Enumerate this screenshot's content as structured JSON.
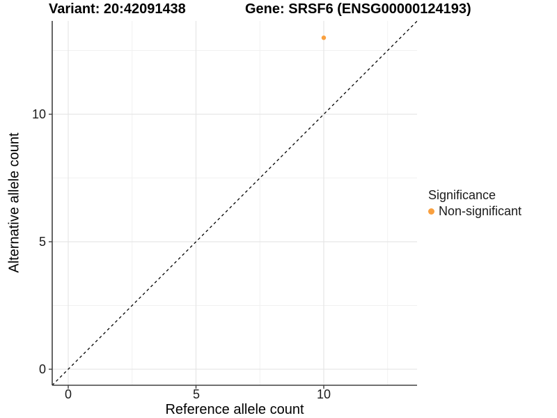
{
  "figure": {
    "title_left": "Variant: 20:42091438",
    "title_right": "Gene: SRSF6 (ENSG00000124193)"
  },
  "chart_data": {
    "type": "scatter",
    "title": "Variant: 20:42091438   Gene: SRSF6 (ENSG00000124193)",
    "xlabel": "Reference allele count",
    "ylabel": "Alternative allele count",
    "xlim": [
      -0.65,
      13.66
    ],
    "ylim": [
      -0.65,
      13.66
    ],
    "x_ticks": [
      "0",
      "5",
      "10"
    ],
    "y_ticks": [
      "0",
      "5",
      "10"
    ],
    "x_tick_values": [
      0,
      5,
      10
    ],
    "y_tick_values": [
      0,
      5,
      10
    ],
    "x_minor_ticks": [
      2.5,
      7.5,
      12.5
    ],
    "y_minor_ticks": [
      2.5,
      7.5,
      12.5
    ],
    "grid": "major+minor",
    "axis_line_color": "#404040",
    "identity_line": {
      "style": "dashed",
      "color": "#000000",
      "from": [
        -0.63,
        -0.63
      ],
      "to": [
        13.66,
        13.66
      ]
    },
    "series": [
      {
        "name": "Non-significant",
        "color": "#F9A03F",
        "points": [
          {
            "x": 10,
            "y": 13
          }
        ]
      }
    ],
    "legend": {
      "title": "Significance",
      "position": "right",
      "items": [
        {
          "label": "Non-significant",
          "color": "#F9A03F",
          "marker": "circle"
        }
      ]
    }
  }
}
